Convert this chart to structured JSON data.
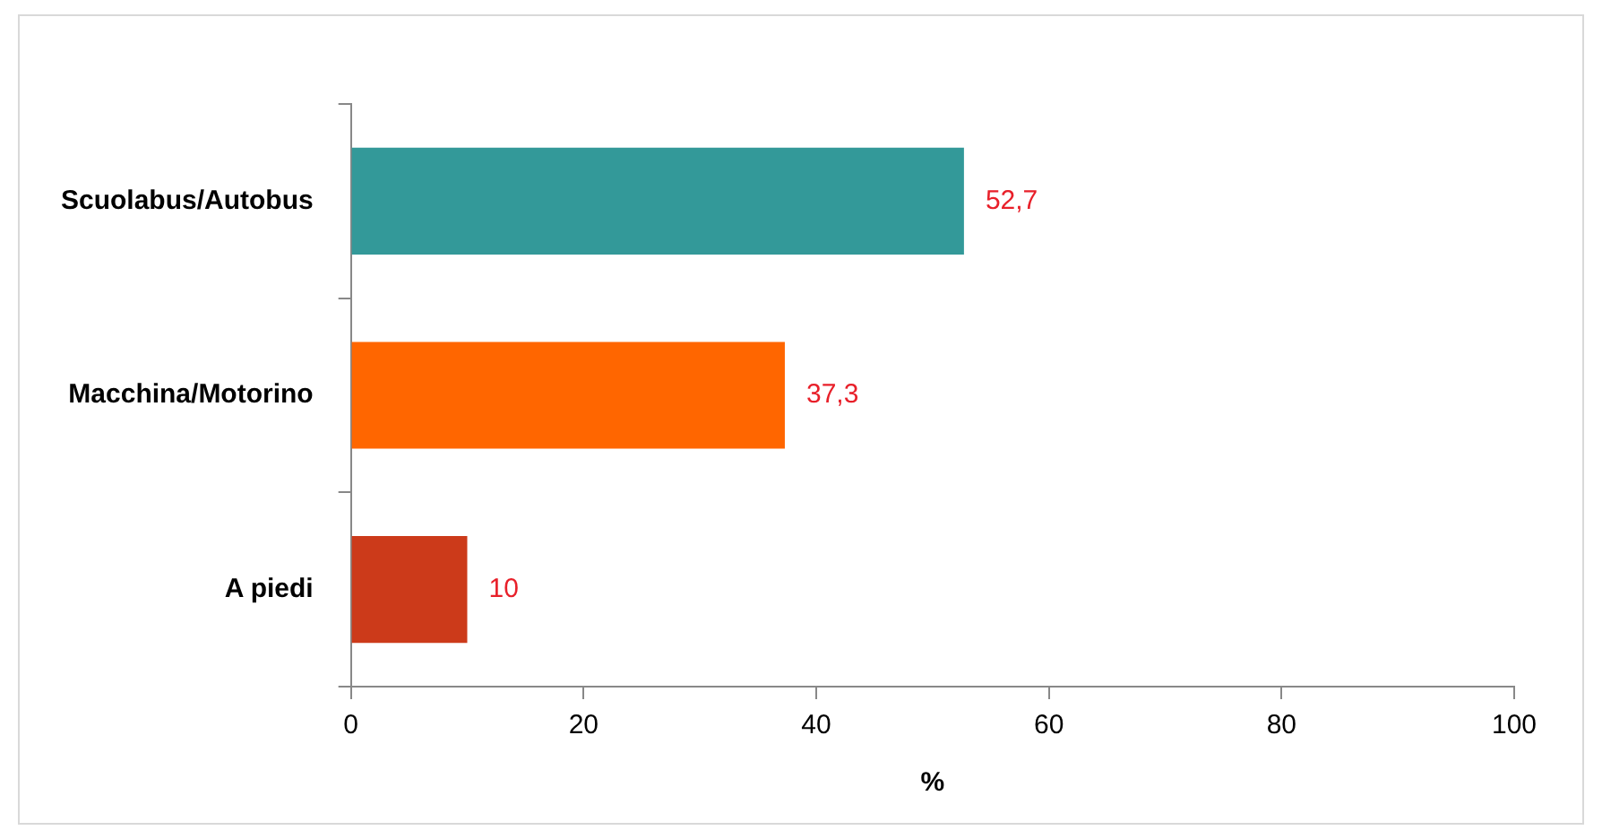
{
  "chart_data": {
    "type": "bar",
    "orientation": "horizontal",
    "categories": [
      "Scuolabus/Autobus",
      "Macchina/Motorino",
      "A piedi"
    ],
    "values": [
      52.7,
      37.3,
      10
    ],
    "colors": [
      "#339999",
      "#ff6600",
      "#cc3a1a"
    ],
    "value_labels": [
      "52,7",
      "37,3",
      "10"
    ],
    "xlim": [
      0,
      100
    ],
    "xticks": [
      0,
      20,
      40,
      60,
      80,
      100
    ],
    "xlabel": "%",
    "grid": false,
    "legend": false
  }
}
